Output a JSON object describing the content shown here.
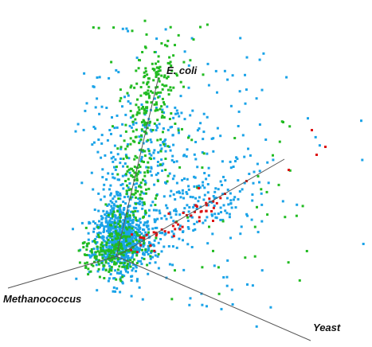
{
  "axes": {
    "ecoli": "E. coli",
    "methanococcus": "Methanococcus",
    "yeast": "Yeast"
  },
  "colors": {
    "background": "#ffffff",
    "axis": "#555555",
    "blue": "#1aa3e8",
    "green": "#22bb22",
    "red": "#dd1111"
  }
}
